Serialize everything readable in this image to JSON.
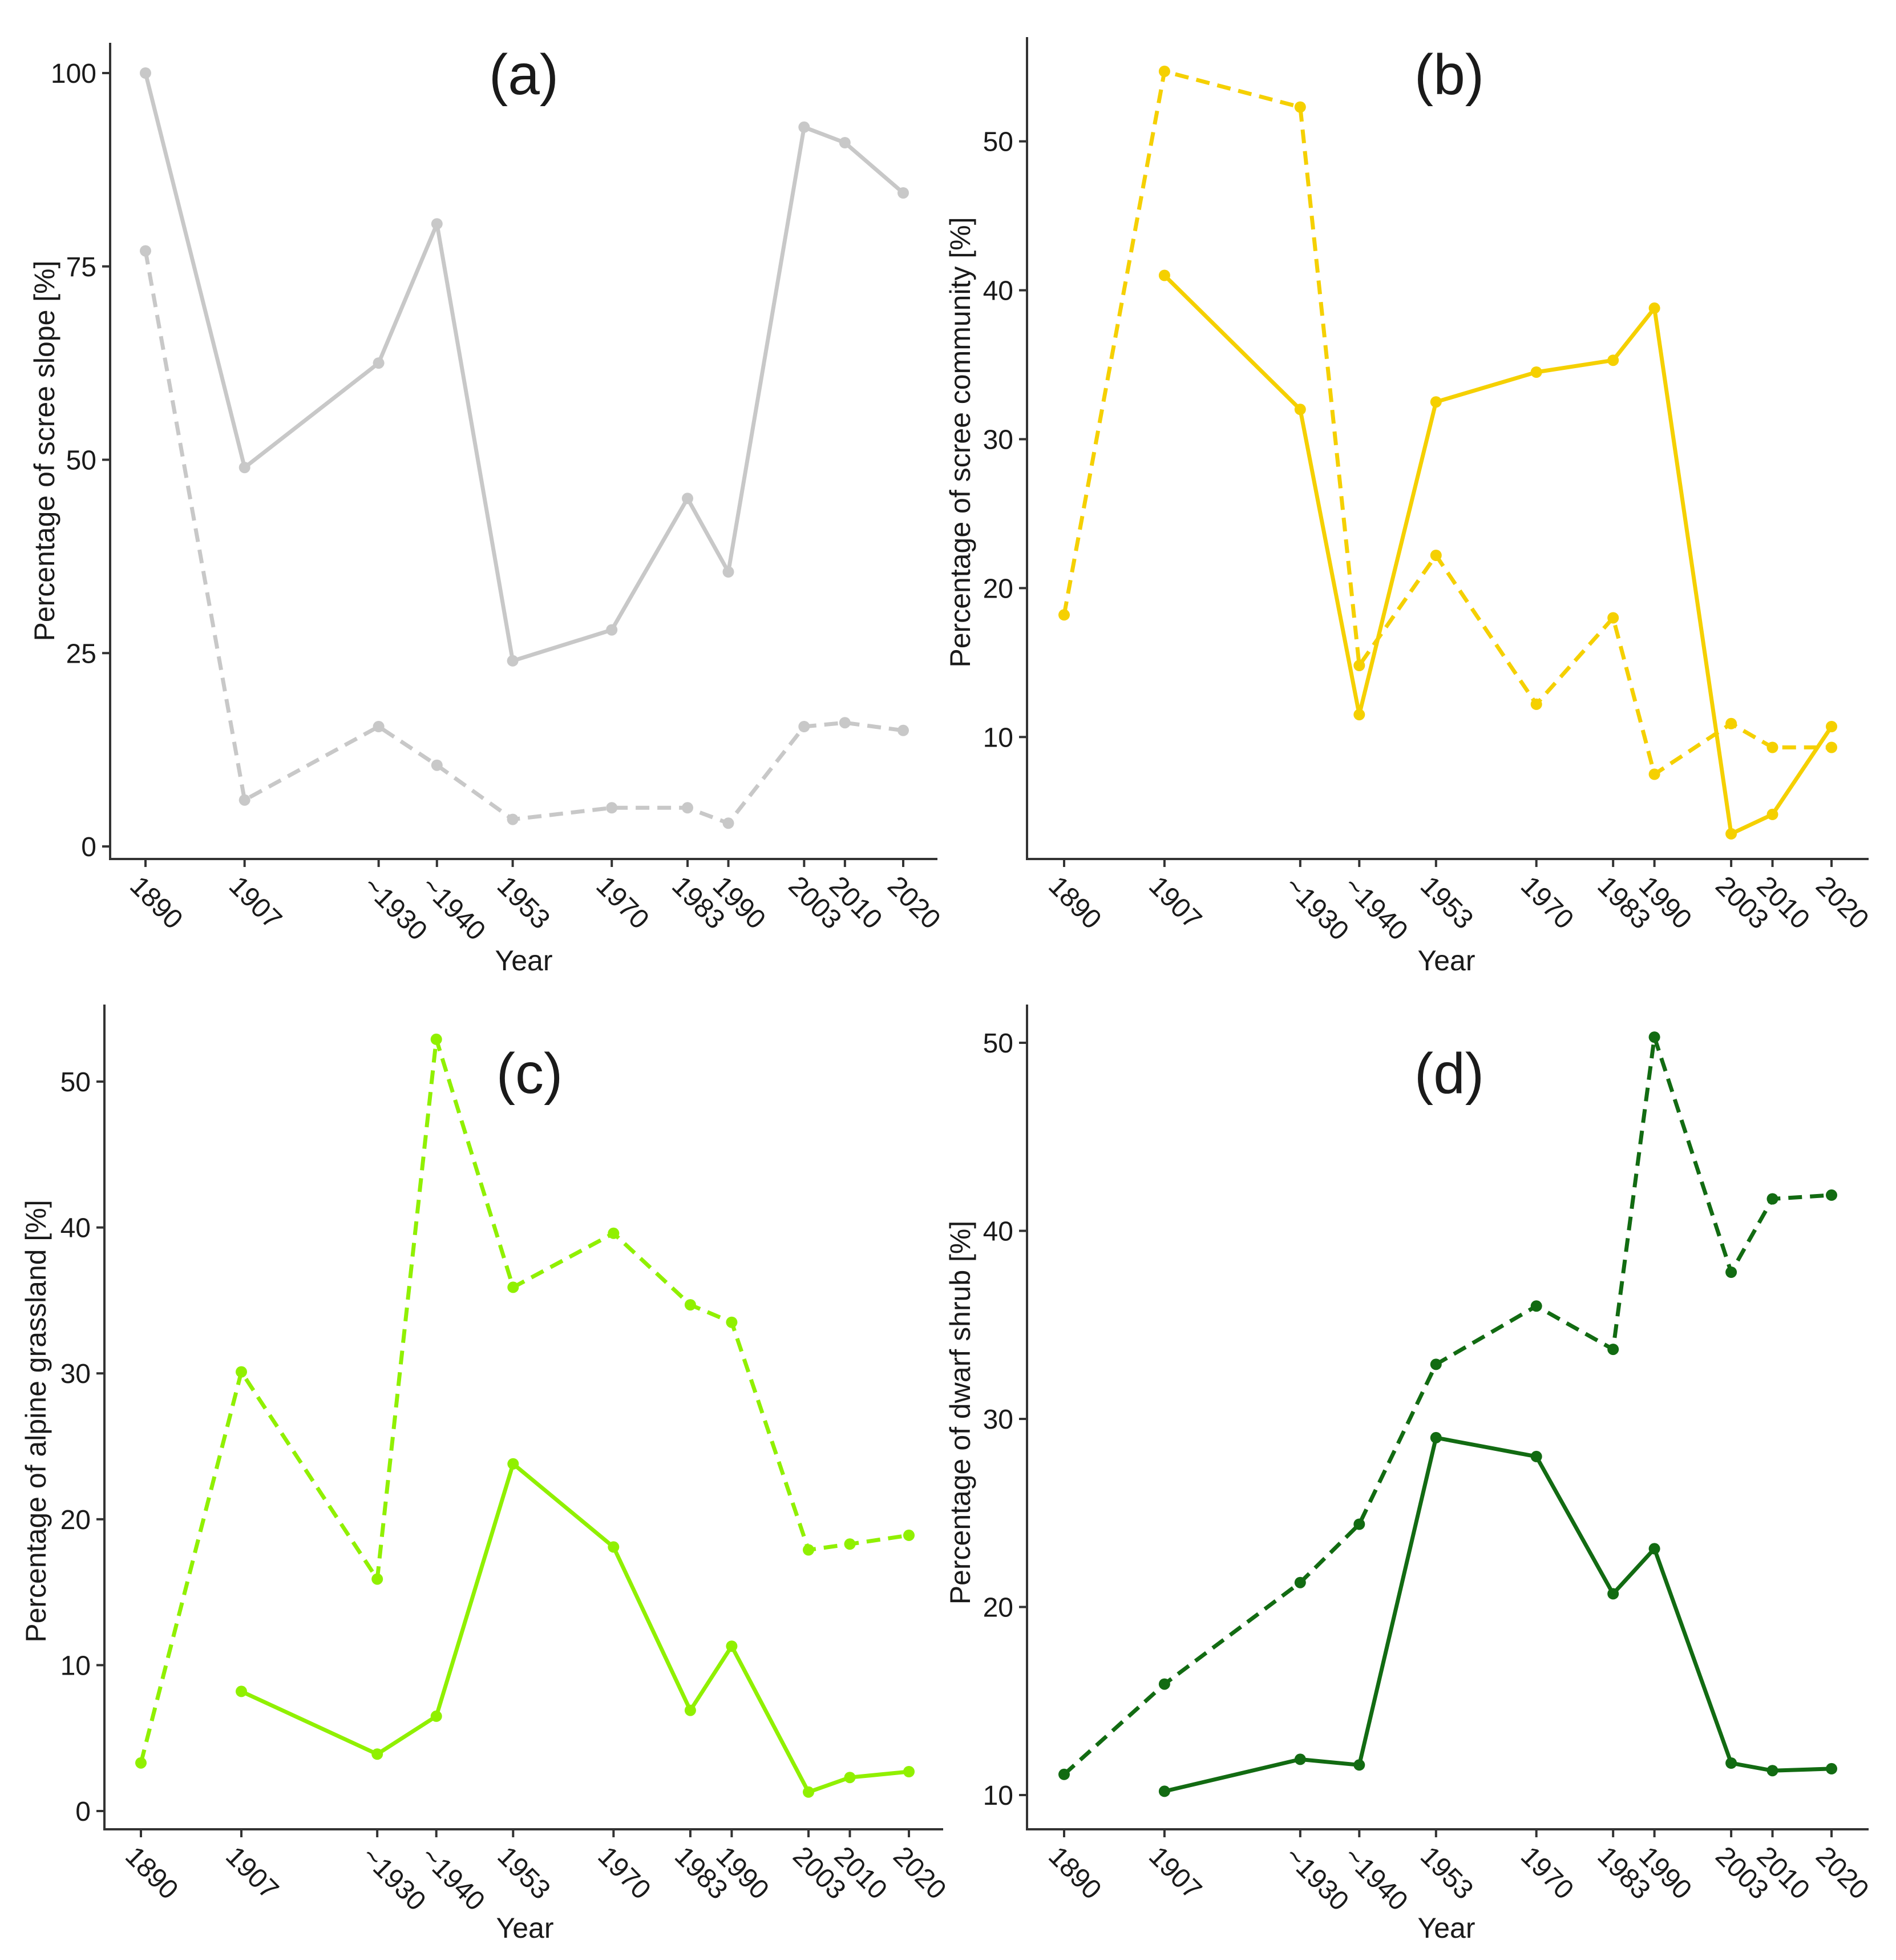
{
  "figure": {
    "xlabel": "Year",
    "x_ticks": [
      "1890",
      "1907",
      "~1930",
      "~1940",
      "1953",
      "1970",
      "1983",
      "1990",
      "2003",
      "2010",
      "2020"
    ],
    "x_tick_values": [
      1890,
      1907,
      1930,
      1940,
      1953,
      1970,
      1983,
      1990,
      2003,
      2010,
      2020
    ],
    "x_range": [
      1890,
      2020
    ]
  },
  "chart_data": [
    {
      "type": "line",
      "panel": "(a)",
      "title": "(a)",
      "xlabel": "Year",
      "ylabel": "Percentage of scree slope [%]",
      "ylim": [
        0,
        100
      ],
      "yticks": [
        0,
        25,
        50,
        75,
        100
      ],
      "color": "#c8c8c8",
      "x": [
        1890,
        1907,
        1930,
        1940,
        1953,
        1970,
        1983,
        1990,
        2003,
        2010,
        2020
      ],
      "series": [
        {
          "name": "solid",
          "style": "solid",
          "values": [
            100,
            49,
            62.5,
            80.5,
            24,
            28,
            45,
            35.5,
            93,
            91,
            84.5
          ]
        },
        {
          "name": "dashed",
          "style": "dashed",
          "values": [
            77,
            6,
            15.5,
            10.5,
            3.5,
            5,
            5,
            3,
            15.5,
            16,
            15
          ]
        }
      ]
    },
    {
      "type": "line",
      "panel": "(b)",
      "title": "(b)",
      "xlabel": "Year",
      "ylabel": "Percentage of scree community [%]",
      "ylim": [
        2,
        57
      ],
      "yticks": [
        10,
        20,
        30,
        40,
        50
      ],
      "color": "#f5d000",
      "x": [
        1890,
        1907,
        1930,
        1940,
        1953,
        1970,
        1983,
        1990,
        2003,
        2010,
        2020
      ],
      "series": [
        {
          "name": "solid",
          "style": "solid",
          "values": [
            null,
            41,
            32,
            11.5,
            32.5,
            34.5,
            35.3,
            38.8,
            3.5,
            4.8,
            10.7
          ]
        },
        {
          "name": "dashed",
          "style": "dashed",
          "values": [
            18.2,
            54.7,
            52.3,
            14.8,
            22.2,
            12.2,
            18,
            7.5,
            10.9,
            9.3,
            9.3
          ]
        }
      ]
    },
    {
      "type": "line",
      "panel": "(c)",
      "title": "(c)",
      "xlabel": "Year",
      "ylabel": "Percentage of alpine grassland [%]",
      "ylim": [
        -1.5,
        55
      ],
      "yticks": [
        0,
        10,
        20,
        30,
        40,
        50
      ],
      "color": "#90f000",
      "x": [
        1890,
        1907,
        1930,
        1940,
        1953,
        1970,
        1983,
        1990,
        2003,
        2010,
        2020
      ],
      "series": [
        {
          "name": "solid",
          "style": "solid",
          "values": [
            null,
            8.2,
            3.9,
            6.5,
            23.8,
            18.1,
            6.9,
            11.3,
            1.3,
            2.3,
            2.7
          ]
        },
        {
          "name": "dashed",
          "style": "dashed",
          "values": [
            3.3,
            30.1,
            15.9,
            52.9,
            35.9,
            39.6,
            34.7,
            33.5,
            17.9,
            18.3,
            18.9
          ]
        }
      ]
    },
    {
      "type": "line",
      "panel": "(d)",
      "title": "(d)",
      "xlabel": "Year",
      "ylabel": "Percentage of dwarf shrub [%]",
      "ylim": [
        8,
        52
      ],
      "yticks": [
        10,
        20,
        30,
        40,
        50
      ],
      "color": "#126b12",
      "x": [
        1890,
        1907,
        1930,
        1940,
        1953,
        1970,
        1983,
        1990,
        2003,
        2010,
        2020
      ],
      "series": [
        {
          "name": "solid",
          "style": "solid",
          "values": [
            null,
            10.2,
            11.9,
            11.6,
            29,
            28,
            20.7,
            23.1,
            11.7,
            11.3,
            11.4
          ]
        },
        {
          "name": "dashed",
          "style": "dashed",
          "values": [
            11.1,
            15.9,
            21.3,
            24.4,
            32.9,
            36,
            33.7,
            50.3,
            37.8,
            41.7,
            41.9
          ]
        }
      ]
    }
  ]
}
